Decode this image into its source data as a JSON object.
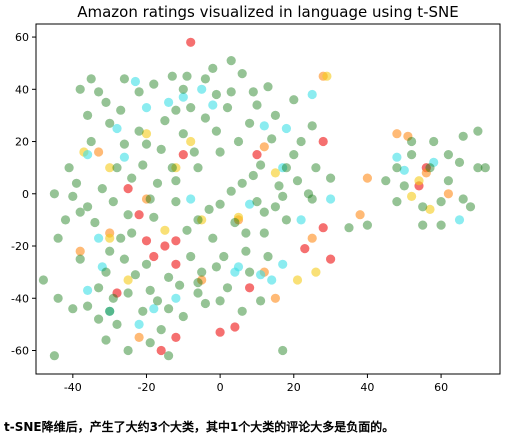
{
  "chart_data": {
    "type": "scatter",
    "title": "Amazon ratings visualized in language using t-SNE",
    "xlabel": "",
    "ylabel": "",
    "xlim": [
      -50,
      76
    ],
    "ylim": [
      -69,
      65
    ],
    "xticks": [
      -40,
      -20,
      0,
      20,
      40,
      60
    ],
    "yticks": [
      -60,
      -40,
      -20,
      0,
      20,
      40,
      60
    ],
    "grid": false,
    "legend": "none",
    "colors": {
      "green": "#137a13",
      "cyan": "#3ee0e6",
      "yellow": "#f5cc1a",
      "orange": "#ff8c1a",
      "red": "#ee1111"
    },
    "series": [
      {
        "color": "red",
        "points": [
          [
            -8,
            58
          ],
          [
            28,
            20
          ],
          [
            -15,
            -20
          ],
          [
            -20,
            -18
          ],
          [
            -18,
            -24
          ],
          [
            -12,
            -27
          ],
          [
            23,
            -21
          ],
          [
            4,
            -51
          ],
          [
            0,
            -53
          ],
          [
            -16,
            -60
          ],
          [
            -25,
            2
          ],
          [
            -22,
            -8
          ],
          [
            -12,
            -18
          ],
          [
            8,
            -36
          ],
          [
            28,
            -13
          ],
          [
            56,
            10
          ],
          [
            54,
            3
          ],
          [
            -28,
            -38
          ],
          [
            -12,
            -55
          ],
          [
            30,
            -25
          ],
          [
            10,
            15
          ],
          [
            -10,
            15
          ]
        ]
      },
      {
        "color": "orange",
        "points": [
          [
            28,
            45
          ],
          [
            40,
            6
          ],
          [
            25,
            -17
          ],
          [
            51,
            22
          ],
          [
            48,
            23
          ],
          [
            56,
            8
          ],
          [
            -20,
            -2
          ],
          [
            -30,
            -15
          ],
          [
            12,
            -30
          ],
          [
            -5,
            -33
          ],
          [
            -33,
            16
          ],
          [
            12,
            18
          ],
          [
            38,
            -8
          ],
          [
            62,
            0
          ],
          [
            -22,
            -55
          ],
          [
            5,
            -10
          ],
          [
            15,
            -40
          ],
          [
            -38,
            -22
          ]
        ]
      },
      {
        "color": "yellow",
        "points": [
          [
            29,
            45
          ],
          [
            -37,
            16
          ],
          [
            -30,
            -17
          ],
          [
            -15,
            -14
          ],
          [
            -8,
            20
          ],
          [
            -12,
            10
          ],
          [
            5,
            -9
          ],
          [
            26,
            -30
          ],
          [
            -25,
            -33
          ],
          [
            57,
            -6
          ],
          [
            -5,
            -10
          ],
          [
            15,
            8
          ],
          [
            -30,
            10
          ],
          [
            -20,
            23
          ],
          [
            21,
            -33
          ],
          [
            54,
            5
          ],
          [
            52,
            -1
          ]
        ]
      },
      {
        "color": "cyan",
        "points": [
          [
            -23,
            43
          ],
          [
            -33,
            -17
          ],
          [
            4,
            -30
          ],
          [
            11,
            -31
          ],
          [
            17,
            -27
          ],
          [
            17,
            10
          ],
          [
            30,
            -2
          ],
          [
            22,
            -10
          ],
          [
            -36,
            15
          ],
          [
            -36,
            -37
          ],
          [
            -22,
            -50
          ],
          [
            -30,
            -45
          ],
          [
            -5,
            40
          ],
          [
            -14,
            35
          ],
          [
            -20,
            33
          ],
          [
            -10,
            37
          ],
          [
            12,
            26
          ],
          [
            18,
            25
          ],
          [
            -8,
            -2
          ],
          [
            5,
            -28
          ],
          [
            50,
            9
          ],
          [
            58,
            12
          ],
          [
            48,
            14
          ],
          [
            -28,
            25
          ],
          [
            -18,
            -44
          ],
          [
            25,
            38
          ],
          [
            -2,
            34
          ],
          [
            -12,
            -40
          ],
          [
            14,
            -33
          ],
          [
            8,
            -4
          ],
          [
            -32,
            -28
          ],
          [
            65,
            -10
          ],
          [
            -26,
            14
          ]
        ]
      },
      {
        "color": "green",
        "points": [
          [
            -45,
            -62
          ],
          [
            17,
            -60
          ],
          [
            -48,
            -33
          ],
          [
            -44,
            -17
          ],
          [
            3,
            51
          ],
          [
            -9,
            45
          ],
          [
            25,
            -2
          ],
          [
            35,
            -13
          ],
          [
            40,
            -12
          ],
          [
            70,
            24
          ],
          [
            72,
            10
          ],
          [
            60,
            -3
          ],
          [
            45,
            5
          ],
          [
            55,
            -5
          ],
          [
            62,
            5
          ],
          [
            65,
            12
          ],
          [
            52,
            15
          ],
          [
            58,
            20
          ],
          [
            48,
            -3
          ],
          [
            68,
            -5
          ],
          [
            60,
            -12
          ],
          [
            66,
            22
          ],
          [
            70,
            10
          ],
          [
            62,
            15
          ],
          [
            50,
            3
          ],
          [
            57,
            10
          ],
          [
            52,
            20
          ],
          [
            48,
            10
          ],
          [
            55,
            -12
          ],
          [
            66,
            -2
          ],
          [
            -40,
            -1
          ],
          [
            -38,
            -7
          ],
          [
            -36,
            -43
          ],
          [
            -28,
            -50
          ],
          [
            -25,
            -60
          ],
          [
            -19,
            -37
          ],
          [
            -14,
            -44
          ],
          [
            -6,
            -38
          ],
          [
            -1,
            -28
          ],
          [
            7,
            -22
          ],
          [
            12,
            -15
          ],
          [
            15,
            -5
          ],
          [
            18,
            10
          ],
          [
            22,
            20
          ],
          [
            10,
            34
          ],
          [
            3,
            39
          ],
          [
            -4,
            44
          ],
          [
            -13,
            45
          ],
          [
            -22,
            39
          ],
          [
            -31,
            35
          ],
          [
            -36,
            30
          ],
          [
            -35,
            20
          ],
          [
            -41,
            10
          ],
          [
            -42,
            -10
          ],
          [
            -38,
            -25
          ],
          [
            -33,
            -36
          ],
          [
            -30,
            -45
          ],
          [
            -25,
            -38
          ],
          [
            -20,
            -27
          ],
          [
            -14,
            -32
          ],
          [
            -8,
            -24
          ],
          [
            -2,
            -17
          ],
          [
            4,
            -11
          ],
          [
            10,
            -3
          ],
          [
            16,
            3
          ],
          [
            20,
            15
          ],
          [
            25,
            26
          ],
          [
            20,
            36
          ],
          [
            13,
            41
          ],
          [
            6,
            46
          ],
          [
            -2,
            48
          ],
          [
            -10,
            40
          ],
          [
            -18,
            42
          ],
          [
            -26,
            44
          ],
          [
            -33,
            39
          ],
          [
            -30,
            27
          ],
          [
            -26,
            19
          ],
          [
            -21,
            11
          ],
          [
            -17,
            4
          ],
          [
            -12,
            -3
          ],
          [
            -6,
            -10
          ],
          [
            0,
            -4
          ],
          [
            6,
            4
          ],
          [
            11,
            11
          ],
          [
            14,
            21
          ],
          [
            8,
            27
          ],
          [
            2,
            33
          ],
          [
            -4,
            29
          ],
          [
            -10,
            23
          ],
          [
            -16,
            17
          ],
          [
            -22,
            24
          ],
          [
            -28,
            10
          ],
          [
            -32,
            2
          ],
          [
            -36,
            -5
          ],
          [
            -30,
            -22
          ],
          [
            -24,
            -15
          ],
          [
            -18,
            -9
          ],
          [
            -12,
            5
          ],
          [
            -6,
            10
          ],
          [
            0,
            16
          ],
          [
            5,
            20
          ],
          [
            -1,
            24
          ],
          [
            -7,
            16
          ],
          [
            -13,
            10
          ],
          [
            -19,
            -2
          ],
          [
            -25,
            -8
          ],
          [
            -31,
            -30
          ],
          [
            -26,
            -25
          ],
          [
            -21,
            -45
          ],
          [
            -16,
            -52
          ],
          [
            -10,
            -47
          ],
          [
            -4,
            -42
          ],
          [
            2,
            -36
          ],
          [
            8,
            -30
          ],
          [
            13,
            -24
          ],
          [
            18,
            -10
          ],
          [
            26,
            10
          ],
          [
            30,
            6
          ],
          [
            24,
            0
          ],
          [
            -45,
            0
          ],
          [
            -39,
            4
          ],
          [
            -34,
            -11
          ],
          [
            -27,
            -17
          ],
          [
            -23,
            -31
          ],
          [
            -17,
            -41
          ],
          [
            -11,
            -35
          ],
          [
            -5,
            -30
          ],
          [
            1,
            -24
          ],
          [
            7,
            -15
          ],
          [
            12,
            -7
          ],
          [
            17,
            -1
          ],
          [
            21,
            5
          ],
          [
            15,
            30
          ],
          [
            9,
            39
          ],
          [
            -1,
            38
          ],
          [
            -8,
            33
          ],
          [
            -15,
            28
          ],
          [
            -20,
            19
          ],
          [
            -24,
            6
          ],
          [
            -29,
            -3
          ],
          [
            -9,
            -14
          ],
          [
            -3,
            -6
          ],
          [
            3,
            1
          ],
          [
            9,
            7
          ],
          [
            -38,
            40
          ],
          [
            -35,
            44
          ],
          [
            -27,
            32
          ],
          [
            -12,
            32
          ],
          [
            -6,
            -34
          ],
          [
            0,
            -41
          ],
          [
            6,
            -45
          ],
          [
            11,
            -41
          ],
          [
            -31,
            -56
          ],
          [
            -19,
            -57
          ],
          [
            -14,
            -62
          ],
          [
            -29,
            -40
          ],
          [
            -33,
            -48
          ],
          [
            -40,
            -44
          ],
          [
            -44,
            -40
          ]
        ]
      }
    ]
  },
  "caption": "t-SNE降维后，产生了大约3个大类，其中1个大类的评论大多是负面的。"
}
